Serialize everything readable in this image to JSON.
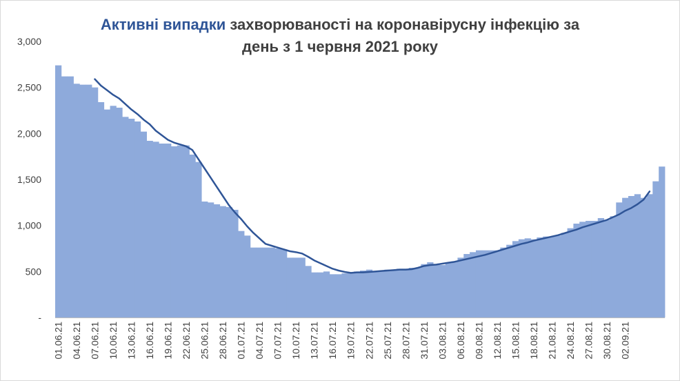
{
  "title": {
    "highlight": "Активні випадки",
    "rest_line1": " захворюваності на коронавірусну інфекцію за",
    "line2": "день з 1 червня 2021 року"
  },
  "colors": {
    "bars": "#8eaadb",
    "line": "#2f5597",
    "title_highlight": "#2f5597",
    "text": "#404040",
    "axis": "#bfbfbf"
  },
  "chart_data": {
    "type": "bar",
    "title": "Активні випадки захворюваності на коронавірусну інфекцію за день з 1 червня 2021 року",
    "xlabel": "",
    "ylabel": "",
    "ylim": [
      0,
      3000
    ],
    "y_ticks": [
      0,
      500,
      1000,
      1500,
      2000,
      2500,
      3000
    ],
    "y_tick_labels": [
      "-",
      "500",
      "1,000",
      "1,500",
      "2,000",
      "2,500",
      "3,000"
    ],
    "grid": false,
    "legend": "none",
    "x_tick_labels": [
      "01.06.21",
      "04.06.21",
      "07.06.21",
      "10.06.21",
      "13.06.21",
      "16.06.21",
      "19.06.21",
      "22.06.21",
      "25.06.21",
      "28.06.21",
      "01.07.21",
      "04.07.21",
      "07.07.21",
      "10.07.21",
      "13.07.21",
      "16.07.21",
      "19.07.21",
      "22.07.21",
      "25.07.21",
      "28.07.21",
      "31.07.21",
      "03.08.21",
      "06.08.21",
      "09.08.21",
      "12.08.21",
      "15.08.21",
      "18.08.21",
      "21.08.21",
      "24.08.21",
      "27.08.21",
      "30.08.21",
      "02.09.21"
    ],
    "x_tick_every": 3,
    "series": [
      {
        "type": "bar",
        "values": [
          2740,
          2620,
          2620,
          2540,
          2530,
          2530,
          2500,
          2340,
          2260,
          2300,
          2280,
          2180,
          2160,
          2130,
          2020,
          1920,
          1910,
          1890,
          1890,
          1860,
          1870,
          1870,
          1770,
          1690,
          1260,
          1250,
          1230,
          1210,
          1200,
          1170,
          940,
          890,
          760,
          760,
          760,
          760,
          750,
          740,
          650,
          650,
          650,
          560,
          490,
          490,
          500,
          470,
          470,
          480,
          480,
          500,
          510,
          520,
          500,
          500,
          520,
          520,
          530,
          530,
          540,
          540,
          580,
          600,
          580,
          570,
          590,
          610,
          650,
          690,
          710,
          730,
          730,
          730,
          730,
          760,
          790,
          830,
          850,
          860,
          850,
          870,
          880,
          880,
          890,
          920,
          970,
          1020,
          1040,
          1050,
          1050,
          1080,
          1060,
          1100,
          1250,
          1300,
          1320,
          1340,
          1300,
          1340,
          1480,
          1640
        ]
      },
      {
        "type": "line",
        "x_start_index": 6,
        "values": [
          2590,
          2520,
          2470,
          2420,
          2380,
          2320,
          2260,
          2210,
          2150,
          2100,
          2030,
          1980,
          1930,
          1900,
          1880,
          1860,
          1820,
          1720,
          1620,
          1520,
          1420,
          1320,
          1220,
          1140,
          1070,
          990,
          920,
          860,
          800,
          780,
          760,
          740,
          720,
          710,
          695,
          660,
          620,
          590,
          560,
          530,
          510,
          495,
          485,
          490,
          490,
          495,
          500,
          505,
          510,
          515,
          520,
          520,
          525,
          540,
          560,
          570,
          575,
          585,
          595,
          605,
          620,
          635,
          650,
          665,
          680,
          700,
          720,
          740,
          760,
          780,
          800,
          815,
          835,
          850,
          865,
          880,
          895,
          915,
          935,
          955,
          980,
          1000,
          1020,
          1040,
          1060,
          1090,
          1120,
          1160,
          1190,
          1230,
          1280,
          1370
        ]
      }
    ]
  }
}
